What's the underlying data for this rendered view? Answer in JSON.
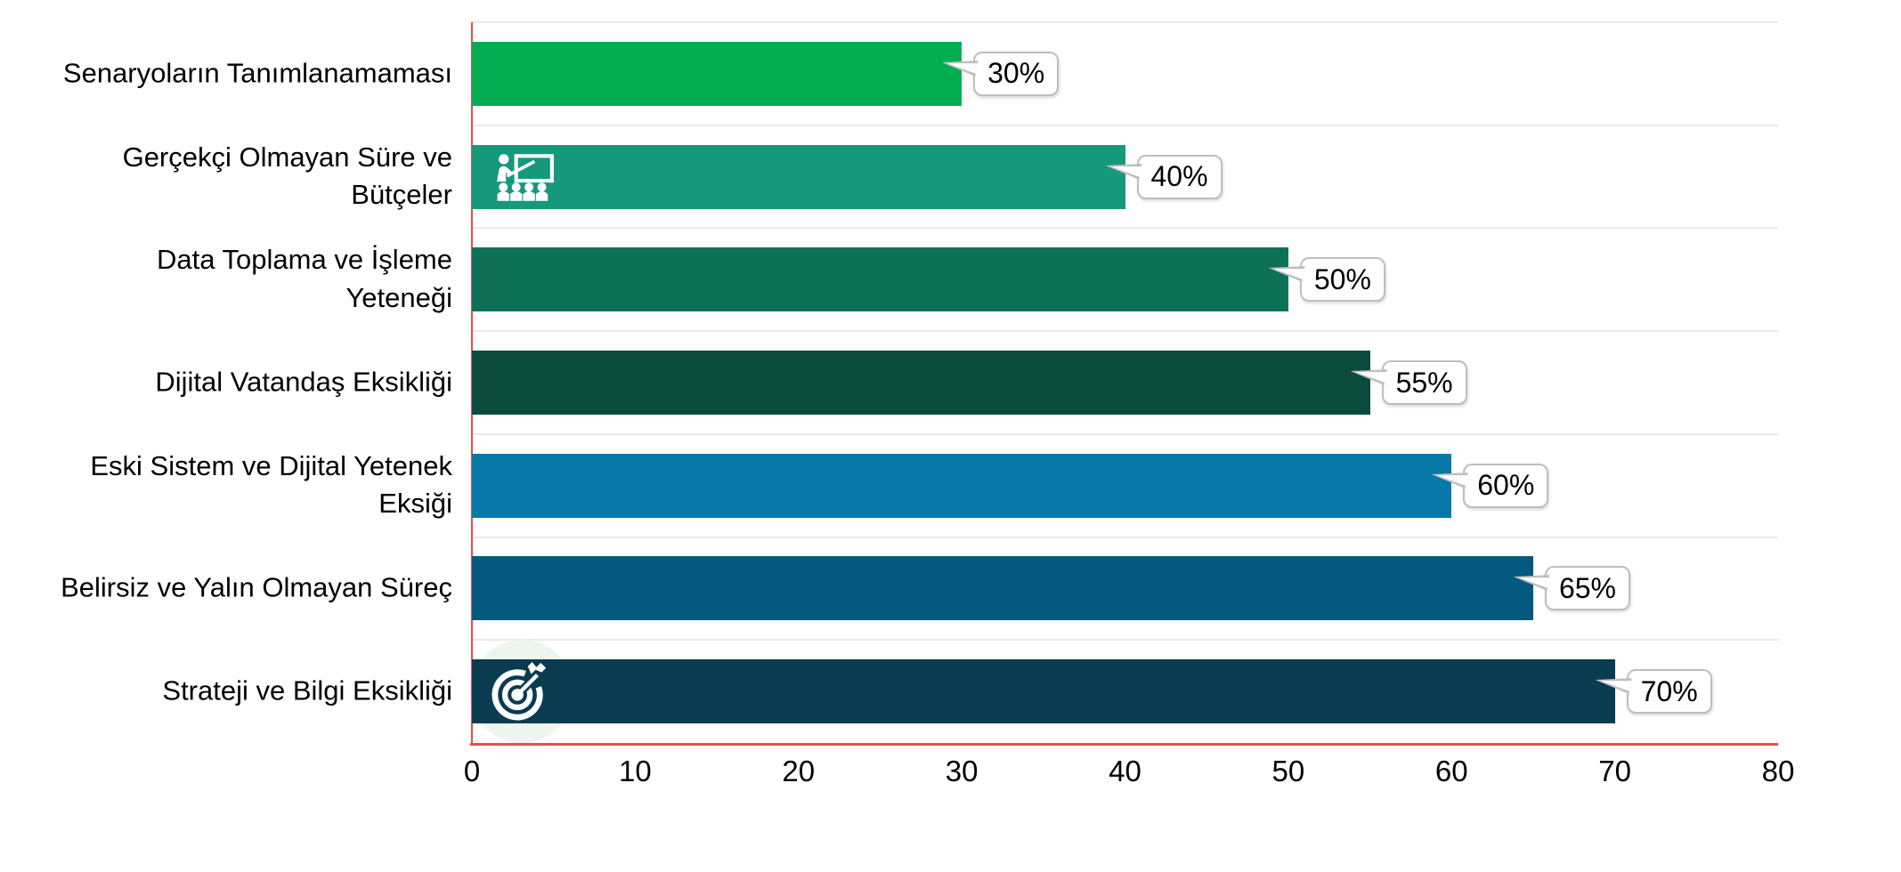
{
  "chart_data": {
    "type": "bar",
    "orientation": "horizontal",
    "title": "",
    "xlabel": "",
    "ylabel": "",
    "categories": [
      "Senaryoların Tanımlanamaması",
      "Gerçekçi Olmayan Süre ve Bütçeler",
      "Data Toplama ve İşleme Yeteneği",
      "Dijital Vatandaş Eksikliği",
      "Eski  Sistem ve Dijital Yetenek Eksiği",
      "Belirsiz ve Yalın Olmayan Süreç",
      "Strateji ve Bilgi Eksikliği"
    ],
    "category_lines": [
      [
        "Senaryoların Tanımlanamaması"
      ],
      [
        "Gerçekçi Olmayan Süre ve",
        "Bütçeler"
      ],
      [
        "Data Toplama ve İşleme",
        "Yeteneği"
      ],
      [
        "Dijital Vatandaş Eksikliği"
      ],
      [
        "Eski  Sistem ve Dijital Yetenek",
        "Eksiği"
      ],
      [
        "Belirsiz ve Yalın Olmayan Süreç"
      ],
      [
        "Strateji ve Bilgi Eksikliği"
      ]
    ],
    "values": [
      30,
      40,
      50,
      55,
      60,
      65,
      70
    ],
    "data_labels": [
      "30%",
      "40%",
      "50%",
      "55%",
      "60%",
      "65%",
      "70%"
    ],
    "bar_colors": [
      "#03AD52",
      "#16987B",
      "#0E7157",
      "#0A4B3D",
      "#0878A8",
      "#03597E",
      "#0A3B50"
    ],
    "icons": [
      {
        "row": 1,
        "name": "classroom-presentation-icon",
        "halo": false
      },
      {
        "row": 6,
        "name": "target-arrow-icon",
        "halo": true
      }
    ],
    "icon_color": "#FFFFFF",
    "highlight_circle_color": "#EDF5F1",
    "xlim": [
      0,
      80
    ],
    "x_ticks": [
      0,
      10,
      20,
      30,
      40,
      50,
      60,
      70,
      80
    ],
    "x_tick_labels": [
      "0",
      "10",
      "20",
      "30",
      "40",
      "50",
      "60",
      "70",
      "80"
    ],
    "grid": "row separator lines, horizontal, light gray",
    "gridline_color": "#E9E9E9",
    "axis_line_color": "#E94B4C",
    "callout": {
      "bg": "#FFFFFF",
      "border": "#BEBEBE",
      "text_color": "#000000"
    },
    "legend": "none",
    "background": "#FFFFFF"
  }
}
